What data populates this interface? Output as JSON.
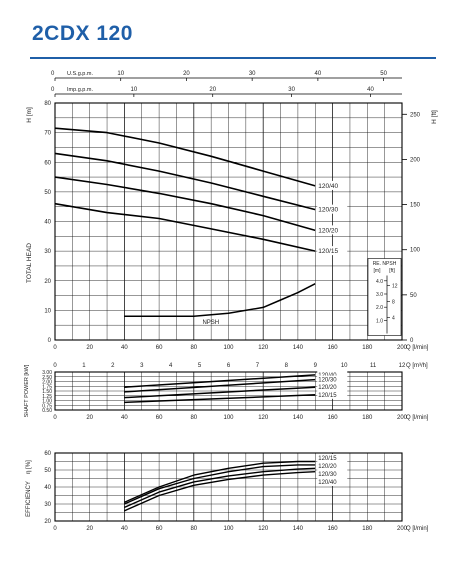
{
  "title": "2CDX 120",
  "colors": {
    "title": "#1f5fa8",
    "grid": "#1a1a1a",
    "curve": "#000000"
  },
  "chart_data": [
    {
      "type": "line",
      "name": "head",
      "x_axis": {
        "label": "Q [l/min]",
        "lim": [
          0,
          200
        ],
        "ticks": [
          "0",
          "20",
          "40",
          "60",
          "80",
          "100",
          "120",
          "140",
          "160",
          "180",
          "200"
        ]
      },
      "top_axes": [
        {
          "label": "U.S.g.p.m.",
          "lim": [
            0,
            52.8
          ],
          "ticks": [
            "0",
            "10",
            "20",
            "30",
            "40",
            "50"
          ]
        },
        {
          "label": "Imp.g.p.m.",
          "lim": [
            0,
            44
          ],
          "ticks": [
            "0",
            "10",
            "20",
            "30",
            "40"
          ]
        }
      ],
      "ylabel": "TOTAL HEAD",
      "y_axis": {
        "label": "H [m]",
        "lim": [
          0,
          80
        ],
        "ticks": [
          "0",
          "10",
          "20",
          "30",
          "40",
          "50",
          "60",
          "70",
          "80"
        ]
      },
      "y2_axis": {
        "label": "H [ft]",
        "lim": [
          0,
          262.5
        ],
        "ticks": [
          "0",
          "50",
          "100",
          "150",
          "200",
          "250"
        ]
      },
      "grid": true,
      "series": [
        {
          "name": "120/40",
          "x": [
            0,
            30,
            60,
            90,
            120,
            150
          ],
          "y": [
            71.5,
            70,
            66.5,
            62,
            57,
            52
          ]
        },
        {
          "name": "120/30",
          "x": [
            0,
            30,
            60,
            90,
            120,
            150
          ],
          "y": [
            63,
            60.5,
            57,
            53,
            48.5,
            44
          ]
        },
        {
          "name": "120/20",
          "x": [
            0,
            30,
            60,
            90,
            120,
            150
          ],
          "y": [
            55,
            52.5,
            49.5,
            46,
            42,
            37
          ]
        },
        {
          "name": "120/15",
          "x": [
            0,
            30,
            60,
            90,
            120,
            150
          ],
          "y": [
            46,
            43,
            41,
            37.5,
            34,
            30
          ]
        }
      ],
      "npsh": {
        "name": "NPSH",
        "x": [
          40,
          60,
          80,
          100,
          120,
          130,
          140,
          150
        ],
        "y": [
          8,
          8,
          8,
          9,
          11,
          13.5,
          16,
          19
        ],
        "scale_title": "RE. NPSH",
        "scale_units": [
          "[m]",
          "[ft]"
        ],
        "scale_m": [
          "1.0",
          "2.0",
          "3.0",
          "4.0"
        ],
        "scale_ft": [
          "4",
          "8",
          "12"
        ]
      }
    },
    {
      "type": "line",
      "name": "shaft-power",
      "x_axis": {
        "label": "Q [l/min]",
        "lim": [
          0,
          200
        ],
        "ticks": [
          "0",
          "20",
          "40",
          "60",
          "80",
          "100",
          "120",
          "140",
          "160",
          "180",
          "200"
        ]
      },
      "top_axes": [
        {
          "label": "Q [m³/h]",
          "lim": [
            0,
            12
          ],
          "ticks": [
            "0",
            "1",
            "2",
            "3",
            "4",
            "5",
            "6",
            "7",
            "8",
            "9",
            "10",
            "11",
            "12"
          ]
        }
      ],
      "y_axis": {
        "label": "SHAFT POWER [kW]",
        "lim": [
          0.5,
          3.0
        ],
        "ticks": [
          "0.50",
          "0.75",
          "1.00",
          "1.25",
          "1.50",
          "1.75",
          "2.00",
          "2.50",
          "3.00"
        ]
      },
      "grid": true,
      "series": [
        {
          "name": "120/40",
          "x": [
            40,
            150
          ],
          "y": [
            1.7,
            2.7
          ]
        },
        {
          "name": "120/30",
          "x": [
            40,
            150
          ],
          "y": [
            1.45,
            2.2
          ]
        },
        {
          "name": "120/20",
          "x": [
            40,
            150
          ],
          "y": [
            1.15,
            1.7
          ]
        },
        {
          "name": "120/15",
          "x": [
            40,
            150
          ],
          "y": [
            0.9,
            1.3
          ]
        }
      ]
    },
    {
      "type": "line",
      "name": "efficiency",
      "x_axis": {
        "label": "Q [l/min]",
        "lim": [
          0,
          200
        ],
        "ticks": [
          "0",
          "20",
          "40",
          "60",
          "80",
          "100",
          "120",
          "140",
          "160",
          "180",
          "200"
        ]
      },
      "y_axis": {
        "label": "EFFICIENCY",
        "symbol": "η [%]",
        "lim": [
          20,
          60
        ],
        "ticks": [
          "20",
          "30",
          "40",
          "50",
          "60"
        ]
      },
      "grid": true,
      "series": [
        {
          "name": "120/15",
          "x": [
            40,
            60,
            80,
            100,
            120,
            140,
            150
          ],
          "y": [
            31,
            40,
            47,
            51,
            54,
            55,
            55
          ]
        },
        {
          "name": "120/20",
          "x": [
            40,
            60,
            80,
            100,
            120,
            140,
            150
          ],
          "y": [
            30,
            39,
            45,
            49,
            52,
            53,
            53
          ]
        },
        {
          "name": "120/30",
          "x": [
            40,
            60,
            80,
            100,
            120,
            140,
            150
          ],
          "y": [
            28,
            37,
            43,
            46.5,
            49,
            50.5,
            51
          ]
        },
        {
          "name": "120/40",
          "x": [
            40,
            60,
            80,
            100,
            120,
            140,
            150
          ],
          "y": [
            26,
            35,
            41,
            44.5,
            47,
            48.5,
            49
          ]
        }
      ]
    }
  ]
}
